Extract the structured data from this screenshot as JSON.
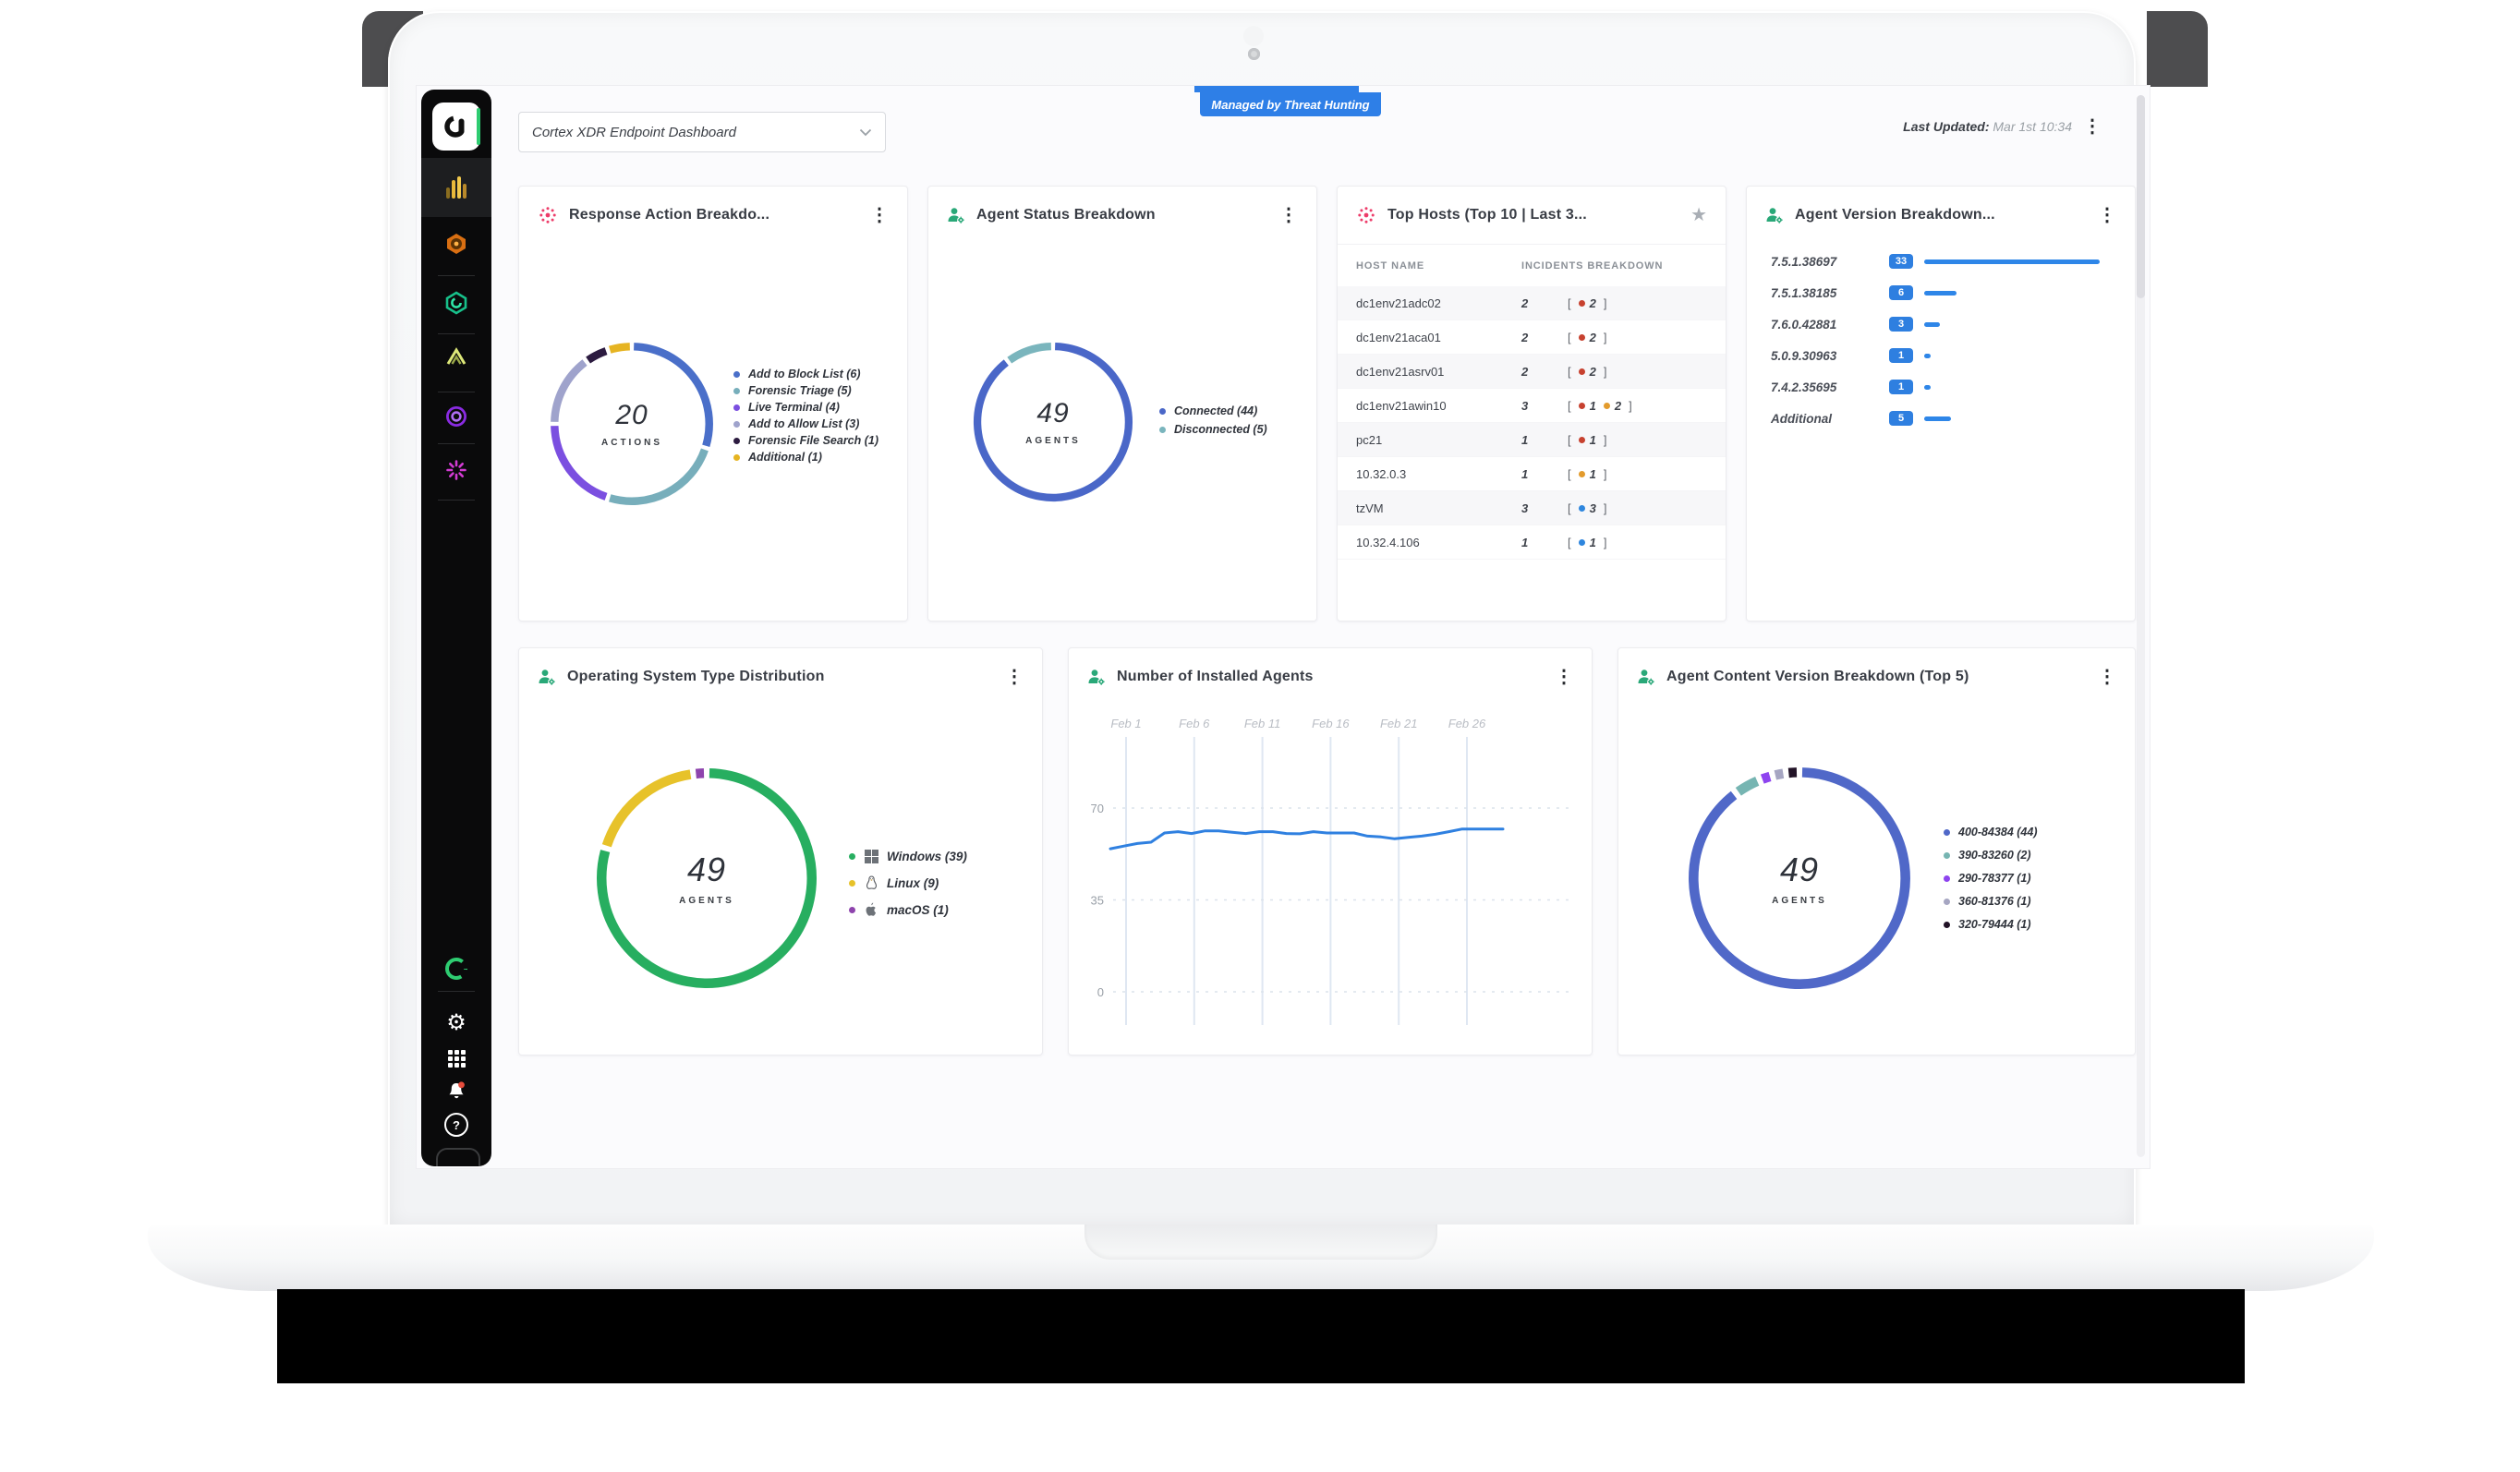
{
  "topbar": {
    "selector_value": "Cortex XDR Endpoint Dashboard",
    "managed_badge": "Managed by Threat Hunting",
    "last_updated_label": "Last Updated:",
    "last_updated_value": "Mar 1st 10:34"
  },
  "sidebar": {
    "icons": [
      "cortex-logo",
      "dashboards-reports",
      "incidents-hexagon",
      "investigation-hexagon",
      "rules-chevron",
      "assets-circle",
      "modules-starburst",
      "sync-status",
      "settings-gear",
      "app-grid",
      "notifications-bell",
      "help"
    ],
    "help_glyph": "?"
  },
  "colors": {
    "accent_blue": "#2e7fe0",
    "badge_blue": "#2e7fe7",
    "incident_red": "#c7412f",
    "incident_orange": "#e39b2d",
    "incident_blue": "#2e86de"
  },
  "widgets": {
    "response_actions": {
      "title": "Response Action Breakdo...",
      "center_value": "20",
      "center_label": "ACTIONS",
      "segments": [
        {
          "label": "Add to Block List (6)",
          "value": 6,
          "color": "#4a6fc9"
        },
        {
          "label": "Forensic Triage (5)",
          "value": 5,
          "color": "#77aebb"
        },
        {
          "label": "Live Terminal (4)",
          "value": 4,
          "color": "#7b4fe0"
        },
        {
          "label": "Add to Allow List (3)",
          "value": 3,
          "color": "#9fa3cc"
        },
        {
          "label": "Forensic File Search (1)",
          "value": 1,
          "color": "#2c1b40"
        },
        {
          "label": "Additional (1)",
          "value": 1,
          "color": "#e6b422"
        }
      ]
    },
    "agent_status": {
      "title": "Agent Status Breakdown",
      "center_value": "49",
      "center_label": "AGENTS",
      "segments": [
        {
          "label": "Connected (44)",
          "value": 44,
          "color": "#4a67c8"
        },
        {
          "label": "Disconnected (5)",
          "value": 5,
          "color": "#7ab5bd"
        }
      ]
    },
    "top_hosts": {
      "title": "Top Hosts (Top 10 | Last 3...",
      "col_host": "HOST NAME",
      "col_incidents": "INCIDENTS BREAKDOWN",
      "rows": [
        {
          "host": "dc1env21adc02",
          "total": "2",
          "parts": [
            {
              "color": "#c7412f",
              "count": "2"
            }
          ]
        },
        {
          "host": "dc1env21aca01",
          "total": "2",
          "parts": [
            {
              "color": "#c7412f",
              "count": "2"
            }
          ]
        },
        {
          "host": "dc1env21asrv01",
          "total": "2",
          "parts": [
            {
              "color": "#c7412f",
              "count": "2"
            }
          ]
        },
        {
          "host": "dc1env21awin10",
          "total": "3",
          "parts": [
            {
              "color": "#c7412f",
              "count": "1"
            },
            {
              "color": "#e39b2d",
              "count": "2"
            }
          ]
        },
        {
          "host": "pc21",
          "total": "1",
          "parts": [
            {
              "color": "#c7412f",
              "count": "1"
            }
          ]
        },
        {
          "host": "10.32.0.3",
          "total": "1",
          "parts": [
            {
              "color": "#e39b2d",
              "count": "1"
            }
          ]
        },
        {
          "host": "tzVM",
          "total": "3",
          "parts": [
            {
              "color": "#2e86de",
              "count": "3"
            }
          ]
        },
        {
          "host": "10.32.4.106",
          "total": "1",
          "parts": [
            {
              "color": "#2e86de",
              "count": "1"
            }
          ]
        }
      ]
    },
    "agent_version": {
      "title": "Agent Version Breakdown...",
      "rows": [
        {
          "label": "7.5.1.38697",
          "count": 33
        },
        {
          "label": "7.5.1.38185",
          "count": 6
        },
        {
          "label": "7.6.0.42881",
          "count": 3
        },
        {
          "label": "5.0.9.30963",
          "count": 1
        },
        {
          "label": "7.4.2.35695",
          "count": 1
        },
        {
          "label": "Additional",
          "count": 5
        }
      ]
    },
    "os_distribution": {
      "title": "Operating System Type Distribution",
      "center_value": "49",
      "center_label": "AGENTS",
      "segments": [
        {
          "label": "Windows (39)",
          "value": 39,
          "color": "#27ae60",
          "icon": "windows"
        },
        {
          "label": "Linux (9)",
          "value": 9,
          "color": "#e7c22a",
          "icon": "linux"
        },
        {
          "label": "macOS (1)",
          "value": 1,
          "color": "#8e44ad",
          "icon": "apple"
        }
      ]
    },
    "installed_agents": {
      "title": "Number of Installed Agents",
      "x_labels": [
        "Feb 1",
        "Feb 6",
        "Feb 11",
        "Feb 16",
        "Feb 21",
        "Feb 26"
      ],
      "y_ticks": [
        70,
        35,
        0
      ],
      "line_color": "#2f80e0",
      "values": [
        54.5,
        55.5,
        56.5,
        57,
        60.5,
        61,
        60.3,
        61.3,
        61.3,
        60.8,
        60.3,
        61,
        61,
        60.3,
        60.2,
        61,
        60.5,
        60.5,
        60.5,
        59.3,
        59,
        58.3,
        58.8,
        59.3,
        60,
        61,
        62,
        62,
        62,
        62
      ]
    },
    "content_version": {
      "title": "Agent Content Version Breakdown (Top 5)",
      "center_value": "49",
      "center_label": "AGENTS",
      "segments": [
        {
          "label": "400-84384 (44)",
          "value": 44,
          "color": "#5068c8"
        },
        {
          "label": "390-83260 (2)",
          "value": 2,
          "color": "#76b5b2"
        },
        {
          "label": "290-78377 (1)",
          "value": 1,
          "color": "#8e44ef"
        },
        {
          "label": "360-81376 (1)",
          "value": 1,
          "color": "#a6a6c2"
        },
        {
          "label": "320-79444 (1)",
          "value": 1,
          "color": "#221327"
        }
      ]
    }
  }
}
